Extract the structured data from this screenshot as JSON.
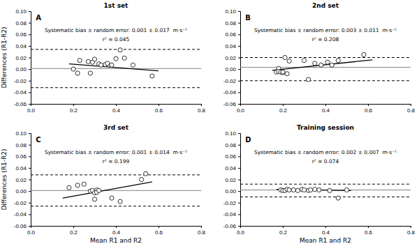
{
  "chart_data": [
    {
      "type": "scatter",
      "title": "1st set",
      "label": "A",
      "annotations": [
        "Systematic bias ± random error: 0.001 ± 0.017  m·s⁻¹",
        "r² = 0.045"
      ],
      "x": [
        0.2,
        0.22,
        0.23,
        0.27,
        0.28,
        0.29,
        0.3,
        0.32,
        0.33,
        0.35,
        0.36,
        0.38,
        0.4,
        0.42,
        0.44,
        0.48,
        0.57
      ],
      "values": [
        0.0,
        -0.007,
        0.015,
        0.013,
        -0.007,
        0.012,
        0.017,
        0.009,
        0.007,
        0.008,
        0.01,
        0.007,
        0.018,
        0.033,
        0.019,
        0.007,
        -0.012
      ],
      "color": "white",
      "marker": "circle",
      "reference_lines": [
        {
          "value": 0.001,
          "color": "#808080",
          "line_style": "solid"
        },
        {
          "value": 0.034,
          "color": "black",
          "line_style": "dashed"
        },
        {
          "value": -0.032,
          "color": "black",
          "line_style": "dashed"
        }
      ],
      "trend": {
        "x": [
          0.18,
          0.6
        ],
        "values": [
          0.009,
          -0.003
        ],
        "color": "black"
      },
      "xlim": [
        0.0,
        0.8
      ],
      "ylim": [
        -0.06,
        0.1
      ],
      "xticks": [
        {
          "value": 0.0,
          "label": "0.0"
        },
        0.2,
        0.4,
        0.6,
        0.8
      ],
      "yticks": [
        -0.06,
        -0.04,
        -0.02,
        {
          "value": 0.0,
          "label": "0.00"
        },
        0.02,
        0.04,
        0.06,
        0.08,
        {
          "value": 0.1,
          "label": "0.10"
        }
      ],
      "ylabel": "Differences (R1-R2)"
    },
    {
      "type": "scatter",
      "title": "2nd set",
      "label": "B",
      "annotations": [
        "Systematic bias ± random error: 0.003 ± 0.011  m·s⁻¹",
        "r² = 0.208"
      ],
      "x": [
        0.17,
        0.18,
        0.18,
        0.19,
        0.2,
        0.2,
        0.21,
        0.22,
        0.23,
        0.3,
        0.32,
        0.35,
        0.38,
        0.41,
        0.43,
        0.46,
        0.58
      ],
      "values": [
        -0.005,
        0.001,
        -0.004,
        -0.005,
        -0.006,
        -0.005,
        0.02,
        -0.008,
        0.014,
        0.015,
        -0.018,
        0.01,
        0.007,
        0.012,
        0.007,
        0.015,
        0.025
      ],
      "color": "white",
      "marker": "circle",
      "reference_lines": [
        {
          "value": 0.003,
          "color": "#808080",
          "line_style": "solid"
        },
        {
          "value": 0.02,
          "color": "black",
          "line_style": "dashed"
        },
        {
          "value": -0.02,
          "color": "black",
          "line_style": "dashed"
        }
      ],
      "trend": {
        "x": [
          0.15,
          0.62
        ],
        "values": [
          -0.002,
          0.016
        ],
        "color": "black"
      },
      "xlim": [
        0.0,
        0.8
      ],
      "ylim": [
        -0.06,
        0.1
      ],
      "xticks": [
        {
          "value": 0.0,
          "label": "0.0"
        },
        0.2,
        0.4,
        0.6,
        0.8
      ],
      "yticks": [
        -0.06,
        -0.04,
        -0.02,
        {
          "value": 0.0,
          "label": "0.00"
        },
        0.02,
        0.04,
        0.06,
        0.08,
        {
          "value": 0.1,
          "label": "0.10"
        }
      ]
    },
    {
      "type": "scatter",
      "title": "3rd set",
      "label": "C",
      "annotations": [
        "Systematic bias ± random error: 0.001 ± 0.014  m·s⁻¹",
        "r² = 0.199"
      ],
      "x": [
        0.18,
        0.22,
        0.25,
        0.28,
        0.29,
        0.3,
        0.3,
        0.31,
        0.31,
        0.32,
        0.38,
        0.42,
        0.52,
        0.54
      ],
      "values": [
        0.006,
        0.01,
        0.012,
        0.0,
        0.001,
        -0.003,
        -0.014,
        0.002,
        -0.002,
        0.001,
        -0.012,
        -0.018,
        0.02,
        0.03
      ],
      "color": "white",
      "marker": "circle",
      "reference_lines": [
        {
          "value": 0.001,
          "color": "#808080",
          "line_style": "solid"
        },
        {
          "value": 0.028,
          "color": "black",
          "line_style": "dashed"
        },
        {
          "value": -0.026,
          "color": "black",
          "line_style": "dashed"
        }
      ],
      "trend": {
        "x": [
          0.15,
          0.57
        ],
        "values": [
          -0.012,
          0.016
        ],
        "color": "black"
      },
      "xlim": [
        0.0,
        0.8
      ],
      "ylim": [
        -0.06,
        0.1
      ],
      "xticks": [
        {
          "value": 0.0,
          "label": "0.0"
        },
        0.2,
        0.4,
        0.6,
        0.8
      ],
      "yticks": [
        -0.06,
        -0.04,
        -0.02,
        {
          "value": 0.0,
          "label": "0.00"
        },
        0.02,
        0.04,
        0.06,
        0.08,
        {
          "value": 0.1,
          "label": "0.10"
        }
      ],
      "xlabel": "Mean R1 and R2",
      "ylabel": "Differences (R1-R2)"
    },
    {
      "type": "scatter",
      "title": "Training session",
      "label": "D",
      "annotations": [
        "Systematic bias ± random error: 0.002 ± 0.007  m·s⁻¹",
        "r² = 0.074"
      ],
      "x": [
        0.19,
        0.2,
        0.21,
        0.22,
        0.23,
        0.25,
        0.27,
        0.29,
        0.3,
        0.32,
        0.33,
        0.35,
        0.37,
        0.42,
        0.46,
        0.5
      ],
      "values": [
        0.002,
        0.001,
        0.001,
        0.003,
        0.002,
        0.002,
        0.001,
        0.003,
        0.002,
        0.001,
        0.002,
        0.003,
        0.002,
        0.001,
        -0.012,
        0.002
      ],
      "color": "white",
      "marker": "circle",
      "reference_lines": [
        {
          "value": 0.002,
          "color": "#808080",
          "line_style": "solid"
        },
        {
          "value": 0.012,
          "color": "black",
          "line_style": "dashed"
        },
        {
          "value": -0.01,
          "color": "black",
          "line_style": "dashed"
        }
      ],
      "trend": {
        "x": [
          0.17,
          0.52
        ],
        "values": [
          0.003,
          0.001
        ],
        "color": "black"
      },
      "xlim": [
        0.0,
        0.8
      ],
      "ylim": [
        -0.06,
        0.1
      ],
      "xticks": [
        {
          "value": 0.0,
          "label": "0.0"
        },
        0.2,
        0.4,
        0.6,
        0.8
      ],
      "yticks": [
        -0.06,
        -0.04,
        -0.02,
        {
          "value": 0.0,
          "label": "0.00"
        },
        0.02,
        0.04,
        0.06,
        0.08,
        {
          "value": 0.1,
          "label": "0.10"
        }
      ],
      "xlabel": "Mean R1 and R2"
    }
  ]
}
